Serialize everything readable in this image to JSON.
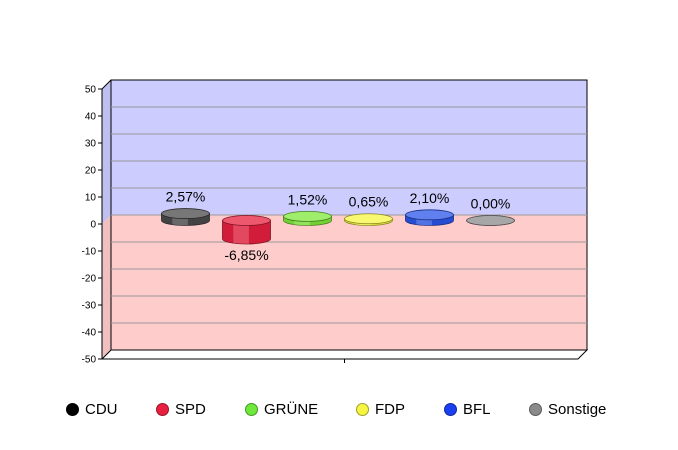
{
  "chart_data": {
    "type": "bar",
    "categories": [
      "CDU",
      "SPD",
      "GRÜNE",
      "FDP",
      "BFL",
      "Sonstige"
    ],
    "values": [
      2.57,
      -6.85,
      1.52,
      0.65,
      2.1,
      0.0
    ],
    "value_labels": [
      "2,57%",
      "-6,85%",
      "1,52%",
      "0,65%",
      "2,10%",
      "0,00%"
    ],
    "colors": [
      "#4a4a4a",
      "#e8203f",
      "#7ee83a",
      "#f5f542",
      "#2a55e8",
      "#8a8a8a"
    ],
    "yticks": [
      "50",
      "40",
      "30",
      "20",
      "10",
      "0",
      "-10",
      "-20",
      "-30",
      "-40",
      "-50"
    ],
    "ylim": [
      -50,
      50
    ],
    "positive_bg": "#ccccff",
    "negative_bg": "#ffcccc",
    "grid": true,
    "legend": "bottom",
    "title": "",
    "xlabel": "",
    "ylabel": ""
  },
  "legend": {
    "items": [
      {
        "label": "CDU",
        "color": "#000000"
      },
      {
        "label": "SPD",
        "color": "#e8203f"
      },
      {
        "label": "GRÜNE",
        "color": "#6ee83a"
      },
      {
        "label": "FDP",
        "color": "#f5f542"
      },
      {
        "label": "BFL",
        "color": "#1a3ff0"
      },
      {
        "label": "Sonstige",
        "color": "#8a8a8a"
      }
    ]
  }
}
